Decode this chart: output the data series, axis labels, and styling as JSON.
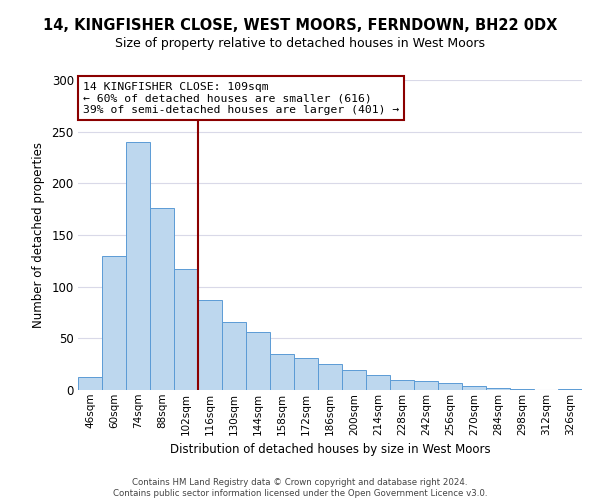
{
  "title": "14, KINGFISHER CLOSE, WEST MOORS, FERNDOWN, BH22 0DX",
  "subtitle": "Size of property relative to detached houses in West Moors",
  "xlabel": "Distribution of detached houses by size in West Moors",
  "ylabel": "Number of detached properties",
  "bar_color": "#bdd7ee",
  "bar_edge_color": "#5b9bd5",
  "categories": [
    "46sqm",
    "60sqm",
    "74sqm",
    "88sqm",
    "102sqm",
    "116sqm",
    "130sqm",
    "144sqm",
    "158sqm",
    "172sqm",
    "186sqm",
    "200sqm",
    "214sqm",
    "228sqm",
    "242sqm",
    "256sqm",
    "270sqm",
    "284sqm",
    "298sqm",
    "312sqm",
    "326sqm"
  ],
  "values": [
    13,
    130,
    240,
    176,
    117,
    87,
    66,
    56,
    35,
    31,
    25,
    19,
    15,
    10,
    9,
    7,
    4,
    2,
    1,
    0,
    1
  ],
  "ylim": [
    0,
    300
  ],
  "yticks": [
    0,
    50,
    100,
    150,
    200,
    250,
    300
  ],
  "vline_x": 4.5,
  "vline_color": "#8b0000",
  "annotation_line1": "14 KINGFISHER CLOSE: 109sqm",
  "annotation_line2": "← 60% of detached houses are smaller (616)",
  "annotation_line3": "39% of semi-detached houses are larger (401) →",
  "annotation_box_color": "#ffffff",
  "annotation_box_edge_color": "#8b0000",
  "footer_text": "Contains HM Land Registry data © Crown copyright and database right 2024.\nContains public sector information licensed under the Open Government Licence v3.0.",
  "background_color": "#ffffff",
  "grid_color": "#d9d9e8"
}
